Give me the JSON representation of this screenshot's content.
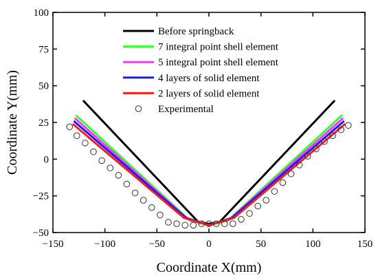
{
  "chart_data": {
    "type": "line",
    "title": "",
    "xlabel": "Coordinate X(mm)",
    "ylabel": "Coordinate Y(mm)",
    "xlim": [
      -150,
      150
    ],
    "ylim": [
      -50,
      100
    ],
    "xticks": [
      -150,
      -100,
      -50,
      0,
      50,
      100,
      150
    ],
    "yticks": [
      -50,
      -25,
      0,
      25,
      50,
      75,
      100
    ],
    "xtick_labels": [
      "−150",
      "−100",
      "−50",
      "0",
      "50",
      "100",
      "150"
    ],
    "ytick_labels": [
      "−50",
      "−25",
      "0",
      "25",
      "50",
      "75",
      "100"
    ],
    "legend_position": "top-center",
    "series": [
      {
        "name": "Before springback",
        "color": "#000000",
        "style": "line",
        "x": [
          -121,
          -10,
          0,
          10,
          121
        ],
        "y": [
          40,
          -43,
          -44,
          -43,
          40
        ]
      },
      {
        "name": "7 integral point shell element",
        "color": "#33ff33",
        "style": "line",
        "x": [
          -128,
          -18,
          0,
          18,
          128
        ],
        "y": [
          30,
          -42,
          -45,
          -42,
          30
        ]
      },
      {
        "name": "5 integral point shell element",
        "color": "#ff33ff",
        "style": "line",
        "x": [
          -129,
          -20,
          0,
          20,
          129
        ],
        "y": [
          28,
          -41,
          -45,
          -41,
          28
        ]
      },
      {
        "name": "4 layers of solid element",
        "color": "#1a1aff",
        "style": "line",
        "x": [
          -130,
          -22,
          0,
          22,
          130
        ],
        "y": [
          26,
          -40,
          -45,
          -40,
          26
        ]
      },
      {
        "name": "2 layers of solid element",
        "color": "#ff1a1a",
        "style": "line",
        "x": [
          -131,
          -24,
          0,
          24,
          131
        ],
        "y": [
          24,
          -40,
          -45,
          -40,
          24
        ]
      },
      {
        "name": "Experimental",
        "color": "#333333",
        "style": "marker",
        "x": [
          -134,
          -127,
          -119,
          -111,
          -103,
          -95,
          -87,
          -79,
          -71,
          -63,
          -55,
          -47,
          -39,
          -31,
          -23,
          -15,
          -7,
          0,
          7,
          15,
          23,
          31,
          39,
          47,
          55,
          63,
          71,
          79,
          87,
          95,
          103,
          111,
          119,
          127,
          134
        ],
        "y": [
          22,
          16,
          11,
          5,
          -1,
          -6,
          -11,
          -17,
          -23,
          -28,
          -33,
          -38,
          -43,
          -44,
          -45,
          -45,
          -44,
          -44,
          -44,
          -44,
          -44,
          -41,
          -37,
          -32,
          -28,
          -22,
          -16,
          -10,
          -4,
          2,
          7,
          12,
          16,
          20,
          23
        ]
      }
    ]
  }
}
